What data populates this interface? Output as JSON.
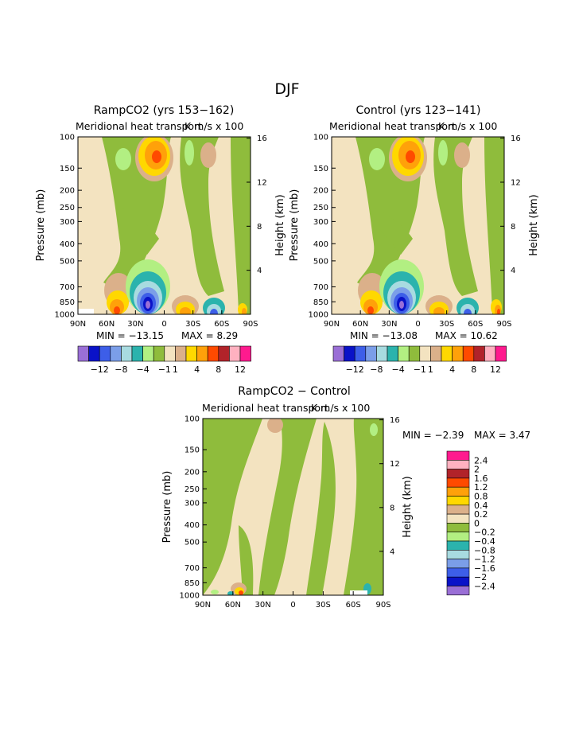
{
  "figure_title": "DJF",
  "palette": {
    "purple": "#9a6fd6",
    "navy": "#0a12c8",
    "blue": "#3d5ee8",
    "lightblue": "#7b9ee8",
    "paleblue": "#a8dbe0",
    "teal": "#2bb3ad",
    "lightgreen": "#b2ef82",
    "green": "#8fbc3c",
    "cream": "#f3e3c0",
    "tan": "#dbb08a",
    "yellow": "#ffd800",
    "orange": "#ffa10a",
    "redorange": "#ff4a00",
    "darkred": "#b1232a",
    "pink": "#ffb1c0",
    "magenta": "#ff1a8e"
  },
  "colorbar_main": {
    "colors": [
      "#9a6fd6",
      "#0a12c8",
      "#3d5ee8",
      "#7b9ee8",
      "#a8dbe0",
      "#2bb3ad",
      "#b2ef82",
      "#8fbc3c",
      "#f3e3c0",
      "#dbb08a",
      "#ffd800",
      "#ffa10a",
      "#ff4a00",
      "#b1232a",
      "#ffb1c0",
      "#ff1a8e"
    ],
    "labels": [
      "-12",
      "-8",
      "-4",
      "-1",
      "1",
      "4",
      "8",
      "12"
    ]
  },
  "colorbar_diff": {
    "colors": [
      "#ff1a8e",
      "#ffb1c0",
      "#b1232a",
      "#ff4a00",
      "#ffa10a",
      "#ffd800",
      "#dbb08a",
      "#f3e3c0",
      "#8fbc3c",
      "#b2ef82",
      "#2bb3ad",
      "#a8dbe0",
      "#7b9ee8",
      "#3d5ee8",
      "#0a12c8",
      "#9a6fd6"
    ],
    "labels": [
      "2.4",
      "2",
      "1.6",
      "1.2",
      "0.8",
      "0.4",
      "0.2",
      "0",
      "-0.2",
      "-0.4",
      "-0.8",
      "-1.2",
      "-1.6",
      "-2",
      "-2.4"
    ]
  },
  "axes": {
    "pressure_ticks": [
      "100",
      "150",
      "200",
      "250",
      "300",
      "400",
      "500",
      "700",
      "850",
      "1000"
    ],
    "height_ticks": [
      "16",
      "12",
      "8",
      "4"
    ],
    "lat_ticks": [
      "90N",
      "60N",
      "30N",
      "0",
      "30S",
      "60S",
      "90S"
    ],
    "ylabel_left": "Pressure (mb)",
    "ylabel_right": "Height (km)"
  },
  "chart_data": [
    {
      "type": "heatmap",
      "title": "RampCO2 (yrs 153−162)",
      "subtitle_left": "Meridional heat transport",
      "subtitle_right": "K m/s x 100",
      "xlabel": "",
      "ylabel": "Pressure (mb)",
      "ylabel_right": "Height (km)",
      "x_ticks": [
        "90N",
        "60N",
        "30N",
        "0",
        "30S",
        "60S",
        "90S"
      ],
      "ylim_mb": [
        1000,
        100
      ],
      "min_label": "MIN = −13.15",
      "max_label": "MAX =    8.29",
      "min": -13.15,
      "max": 8.29
    },
    {
      "type": "heatmap",
      "title": "Control (yrs 123−141)",
      "subtitle_left": "Meridional heat transport",
      "subtitle_right": "K m/s x 100",
      "xlabel": "",
      "ylabel": "Pressure (mb)",
      "ylabel_right": "Height (km)",
      "x_ticks": [
        "90N",
        "60N",
        "30N",
        "0",
        "30S",
        "60S",
        "90S"
      ],
      "ylim_mb": [
        1000,
        100
      ],
      "min_label": "MIN = −13.08",
      "max_label": "MAX =  10.62",
      "min": -13.08,
      "max": 10.62
    },
    {
      "type": "heatmap",
      "title": "RampCO2 − Control",
      "subtitle_left": "Meridional heat transport",
      "subtitle_right": "K m/s x 100",
      "xlabel": "",
      "ylabel": "Pressure (mb)",
      "ylabel_right": "Height (km)",
      "x_ticks": [
        "90N",
        "60N",
        "30N",
        "0",
        "30S",
        "60S",
        "90S"
      ],
      "ylim_mb": [
        1000,
        100
      ],
      "min_label": "MIN =   −2.39",
      "max_label": "MAX =    3.47",
      "min": -2.39,
      "max": 3.47
    }
  ]
}
